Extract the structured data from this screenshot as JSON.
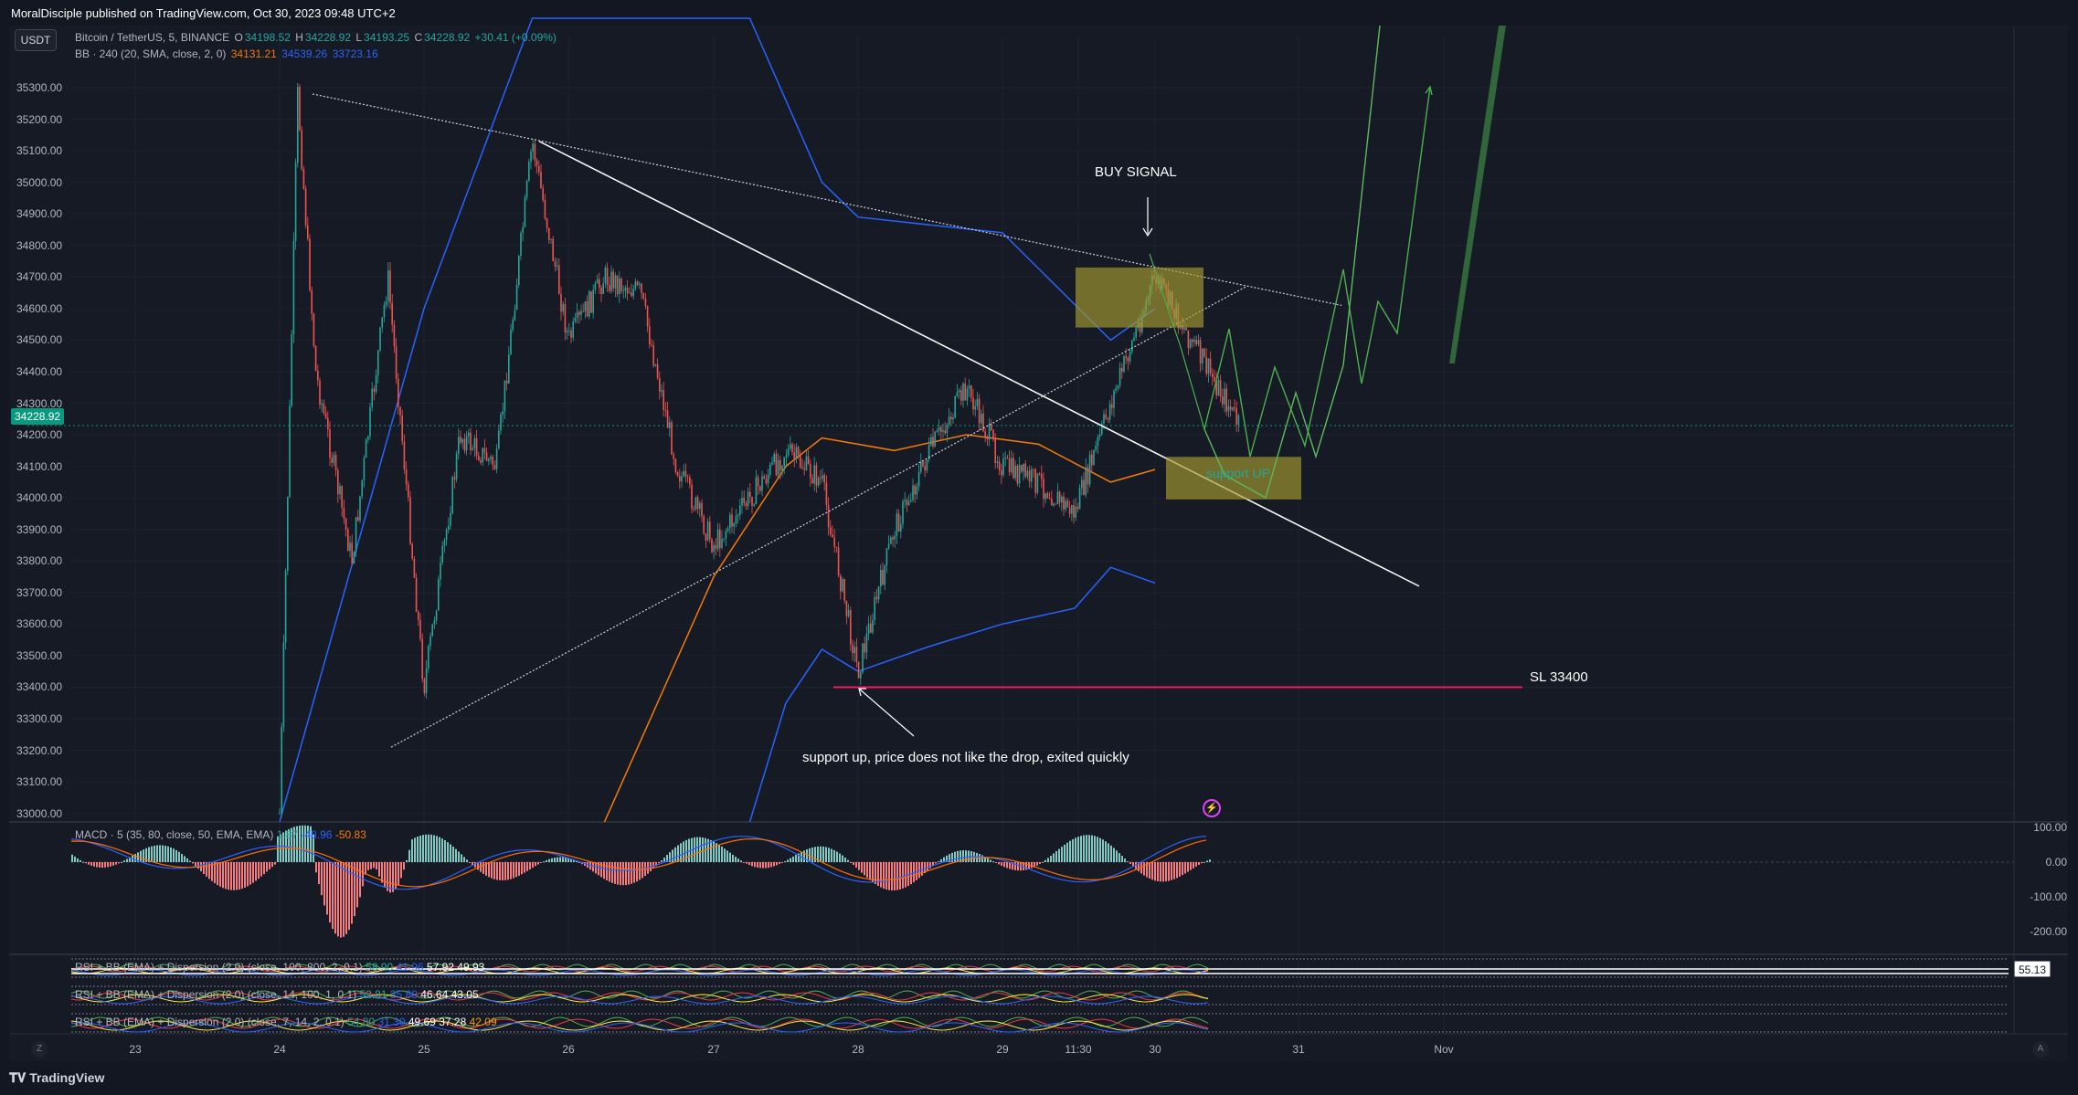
{
  "header": {
    "publish_text": "MoralDisciple published on TradingView.com, Oct 30, 2023 09:48 UTC+2"
  },
  "symbol_bar": {
    "currency_button": "USDT",
    "title": "Bitcoin / TetherUS, 5, BINANCE",
    "o_label": "O",
    "o_value": "34198.52",
    "h_label": "H",
    "h_value": "34228.92",
    "l_label": "L",
    "l_value": "34193.25",
    "c_label": "C",
    "c_value": "34228.92",
    "change": "+30.41 (+0.09%)"
  },
  "bb_legend": {
    "label": "BB · 240 (20, SMA, close, 2, 0)",
    "basis": "34131.21",
    "upper": "34539.26",
    "lower": "33723.16"
  },
  "macd_legend": {
    "label": "MACD · 5 (35, 80, close, 50, EMA, EMA)",
    "hist": "1.87",
    "macd": "-48.96",
    "signal": "-50.83"
  },
  "indicator_legends": [
    {
      "label": "RSI + BB (EMA) + Dispersion (2.0) (close, 100, 800, 2, 0.1)",
      "v1": "58.90",
      "v2": "41.96",
      "v3": "57.92",
      "v4": "49.93"
    },
    {
      "label": "RSI + BB (EMA) + Dispersion (2.0) (close, 14, 100, 1, 0.1)",
      "v1": "52.81",
      "v2": "35.88",
      "v3": "46.64",
      "v4": "43.05"
    },
    {
      "label": "RSI + BB (EMA) + Dispersion (2.0) (close, 7, 14, 2, 0.1)",
      "v1": "54.80",
      "v2": "31.30",
      "v3": "49.69",
      "v4": "37.28",
      "v5": "42.09"
    }
  ],
  "indicator_right_value": "55.13",
  "annotations": {
    "buy_signal": "BUY SIGNAL",
    "support_up_box": "support UP",
    "sl": "SL 33400",
    "support_note": "support up, price does not like the drop, exited quickly"
  },
  "price_tag": "34228.92",
  "footer": {
    "brand": "TradingView",
    "left_button": "Z",
    "right_button": "A"
  },
  "colors": {
    "background": "#161a25",
    "up": "#26a69a",
    "down": "#ef5350",
    "bb_upper": "#2962ff",
    "bb_basis": "#f57c00",
    "sl_line": "#e91e63",
    "target_box": "#a69b2e",
    "projection": "#4caf50"
  },
  "chart_data": {
    "type": "candlestick",
    "symbol": "Bitcoin / TetherUS",
    "timeframe": "5",
    "exchange": "BINANCE",
    "y_ticks": [
      35300,
      35200,
      35100,
      35000,
      34900,
      34800,
      34700,
      34600,
      34500,
      34400,
      34300,
      34200,
      34100,
      34000,
      33900,
      33800,
      33700,
      33600,
      33500,
      33400,
      33300,
      33200,
      33100,
      33000
    ],
    "y_tick_labels": [
      "35300.00",
      "35200.00",
      "35100.00",
      "35000.00",
      "34900.00",
      "34800.00",
      "34700.00",
      "34600.00",
      "34500.00",
      "34400.00",
      "34300.00",
      "34200.00",
      "34100.00",
      "34000.00",
      "33900.00",
      "33800.00",
      "33700.00",
      "33600.00",
      "33500.00",
      "33400.00",
      "33300.00",
      "33200.00",
      "33100.00",
      "33000.00"
    ],
    "ylim": [
      32950,
      35540
    ],
    "x_ticks": [
      "23",
      "24",
      "25",
      "26",
      "27",
      "28",
      "29",
      "11:30",
      "30",
      "31",
      "Nov"
    ],
    "last_price": 34228.92,
    "stop_loss": 33400,
    "price_path": [
      {
        "x": "24",
        "y": 33000
      },
      {
        "x": "24 03:00",
        "y": 35280
      },
      {
        "x": "24 06:00",
        "y": 34400
      },
      {
        "x": "24 12:00",
        "y": 33800
      },
      {
        "x": "24 18:00",
        "y": 34700
      },
      {
        "x": "25",
        "y": 33400
      },
      {
        "x": "25 06:00",
        "y": 34200
      },
      {
        "x": "25 12:00",
        "y": 34100
      },
      {
        "x": "25 18:00",
        "y": 35130
      },
      {
        "x": "26",
        "y": 34500
      },
      {
        "x": "26 06:00",
        "y": 34700
      },
      {
        "x": "26 12:00",
        "y": 34650
      },
      {
        "x": "26 18:00",
        "y": 34100
      },
      {
        "x": "27",
        "y": 33850
      },
      {
        "x": "27 06:00",
        "y": 34000
      },
      {
        "x": "27 12:00",
        "y": 34150
      },
      {
        "x": "27 18:00",
        "y": 34050
      },
      {
        "x": "28",
        "y": 33450
      },
      {
        "x": "28 06:00",
        "y": 33900
      },
      {
        "x": "28 12:00",
        "y": 34150
      },
      {
        "x": "28 18:00",
        "y": 34350
      },
      {
        "x": "29",
        "y": 34100
      },
      {
        "x": "29 06:00",
        "y": 34050
      },
      {
        "x": "29 12:00",
        "y": 33950
      },
      {
        "x": "29 18:00",
        "y": 34300
      },
      {
        "x": "30",
        "y": 34700
      },
      {
        "x": "30 06:00",
        "y": 34500
      },
      {
        "x": "30 12:00",
        "y": 34300
      },
      {
        "x": "30 14:00",
        "y": 34228.92
      }
    ],
    "bb_upper_path": [
      {
        "x": "24",
        "y": 32950
      },
      {
        "x": "25",
        "y": 34600
      },
      {
        "x": "25 18:00",
        "y": 35540
      },
      {
        "x": "27 06:00",
        "y": 35540
      },
      {
        "x": "27 18:00",
        "y": 35000
      },
      {
        "x": "28",
        "y": 34890
      },
      {
        "x": "29",
        "y": 34840
      },
      {
        "x": "29 18:00",
        "y": 34500
      },
      {
        "x": "30",
        "y": 34600
      }
    ],
    "bb_basis_path": [
      {
        "x": "26 06:00",
        "y": 32950
      },
      {
        "x": "27",
        "y": 33750
      },
      {
        "x": "27 12:00",
        "y": 34100
      },
      {
        "x": "27 18:00",
        "y": 34190
      },
      {
        "x": "28 06:00",
        "y": 34150
      },
      {
        "x": "28 18:00",
        "y": 34200
      },
      {
        "x": "29 06:00",
        "y": 34170
      },
      {
        "x": "29 18:00",
        "y": 34050
      },
      {
        "x": "30",
        "y": 34090
      }
    ],
    "bb_lower_path": [
      {
        "x": "27 06:00",
        "y": 32950
      },
      {
        "x": "27 12:00",
        "y": 33350
      },
      {
        "x": "27 18:00",
        "y": 33520
      },
      {
        "x": "28",
        "y": 33450
      },
      {
        "x": "28 12:00",
        "y": 33530
      },
      {
        "x": "29",
        "y": 33600
      },
      {
        "x": "29 12:00",
        "y": 33650
      },
      {
        "x": "29 18:00",
        "y": 33780
      },
      {
        "x": "30",
        "y": 33730
      }
    ],
    "macd": {
      "ticks": [
        100,
        0,
        -100,
        -200
      ],
      "tick_labels": [
        "100.00",
        "0.00",
        "-100.00",
        "-200.00"
      ]
    }
  }
}
